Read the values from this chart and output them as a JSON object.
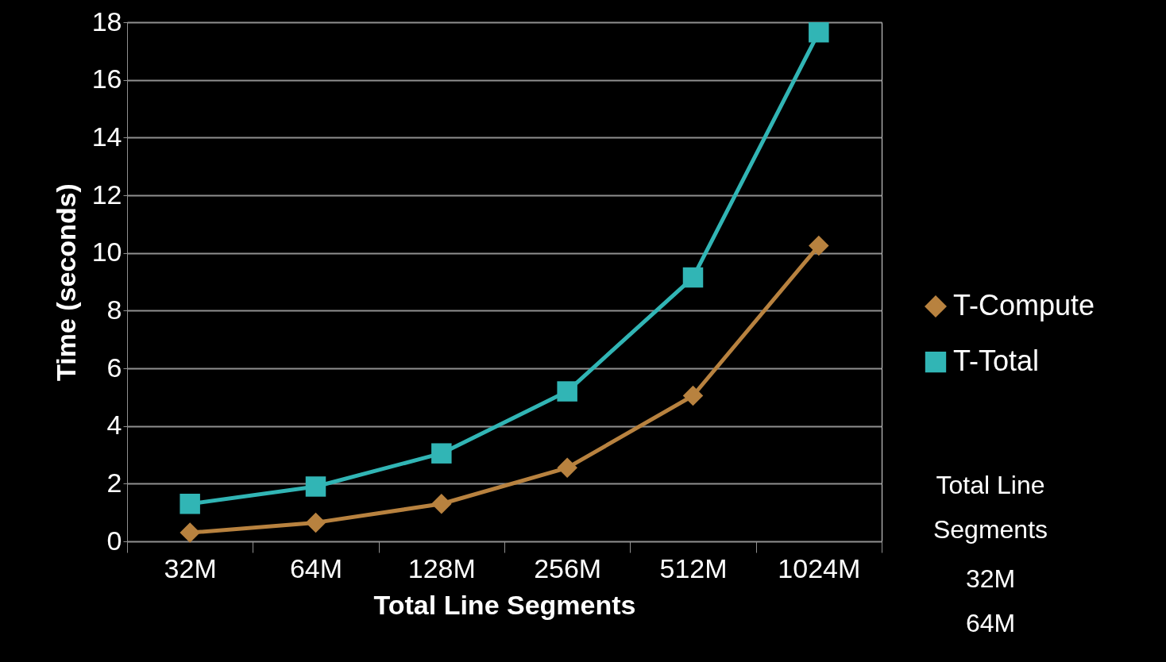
{
  "chart_data": {
    "type": "line",
    "xlabel": "Total Line Segments",
    "ylabel": "Time (seconds)",
    "categories": [
      "32M",
      "64M",
      "128M",
      "256M",
      "512M",
      "1024M"
    ],
    "series": [
      {
        "name": "T-Compute",
        "color": "#b8823f",
        "marker": "diamond",
        "values": [
          0.3,
          0.65,
          1.3,
          2.55,
          5.05,
          10.25
        ]
      },
      {
        "name": "T-Total",
        "color": "#31b5b5",
        "marker": "square",
        "values": [
          1.3,
          1.9,
          3.05,
          5.2,
          9.15,
          17.65
        ]
      }
    ],
    "ylim": [
      0,
      18
    ],
    "yticks": [
      0,
      2,
      4,
      6,
      8,
      10,
      12,
      14,
      16,
      18
    ],
    "grid": "y",
    "legend": "right",
    "annotations": [
      "Total Line Segments",
      "32M",
      "64M"
    ]
  }
}
